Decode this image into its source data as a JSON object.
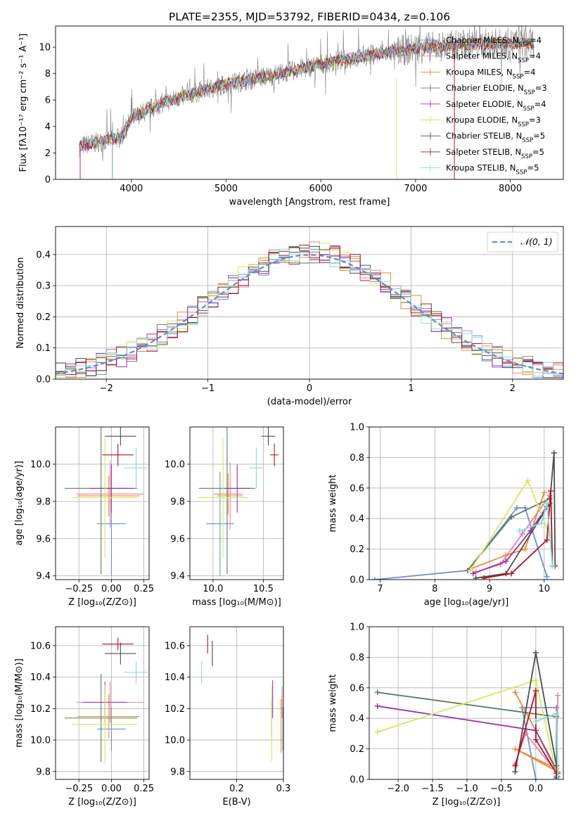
{
  "title": "PLATE=2355, MJD=53792, FIBERID=0434, z=0.106",
  "models": [
    {
      "name": "Chabrier MILES",
      "nssp": "4",
      "color": "#6b8fd9"
    },
    {
      "name": "Salpeter MILES",
      "nssp": "4",
      "color": "#e8839e"
    },
    {
      "name": "Kroupa MILES",
      "nssp": "4",
      "color": "#ee8a32"
    },
    {
      "name": "Chabrier ELODIE",
      "nssp": "3",
      "color": "#5a7f62"
    },
    {
      "name": "Salpeter ELODIE",
      "nssp": "4",
      "color": "#9f2fb0"
    },
    {
      "name": "Kroupa ELODIE",
      "nssp": "3",
      "color": "#d3ea58"
    },
    {
      "name": "Chabrier STELIB",
      "nssp": "5",
      "color": "#4d4d4d"
    },
    {
      "name": "Salpeter STELIB",
      "nssp": "5",
      "color": "#b3141f"
    },
    {
      "name": "Kroupa STELIB",
      "nssp": "5",
      "color": "#86dbe3"
    }
  ],
  "nssp_prefix": "N",
  "nssp_sub": "SSP",
  "chart_data": [
    {
      "id": "spectrum",
      "type": "line",
      "xlabel": "wavelength [Angstrom, rest frame]",
      "ylabel": "Flux [fλ10⁻¹⁷ erg cm⁻² s⁻¹ A⁻¹]",
      "xlim": [
        3200,
        8560
      ],
      "ylim": [
        0,
        11.6
      ],
      "xticks": [
        4000,
        5000,
        6000,
        7000,
        8000
      ],
      "yticks": [
        0,
        2,
        4,
        6,
        8,
        10
      ],
      "x_range": [
        3450,
        8250
      ],
      "continuum": {
        "x": [
          3450,
          3900,
          4000,
          4300,
          4600,
          5000,
          5500,
          6000,
          6500,
          7000,
          7500,
          8000,
          8250
        ],
        "y": [
          2.5,
          3.2,
          4.6,
          5.7,
          6.4,
          7.2,
          7.9,
          8.7,
          9.4,
          9.9,
          10.2,
          10.3,
          10.3
        ]
      },
      "data_color": "#808080"
    },
    {
      "id": "residuals",
      "type": "histogram",
      "xlabel": "(data-model)/error",
      "ylabel": "Normed distribution",
      "xlim": [
        -2.5,
        2.5
      ],
      "ylim": [
        0,
        0.49
      ],
      "xticks": [
        -2,
        -1,
        0,
        1,
        2
      ],
      "yticks": [
        0.0,
        0.1,
        0.2,
        0.3,
        0.4
      ],
      "bin_width": 0.1,
      "bins_start": -2.5,
      "reference": {
        "name": "𝒩(0, 1)",
        "type": "normal",
        "mean": 0,
        "sigma": 1,
        "color": "#5b8bd6"
      }
    },
    {
      "id": "age-vs-z",
      "type": "errorbar",
      "xlabel": "Z [log₁₀(Z/Z⊙)]",
      "ylabel": "age  [log₁₀(age/yr)]",
      "xlim": [
        -0.43,
        0.29
      ],
      "ylim": [
        9.38,
        10.2
      ],
      "xticks": [
        -0.25,
        0.0,
        0.25
      ],
      "yticks": [
        9.4,
        9.6,
        9.8,
        10.0
      ],
      "points": [
        {
          "x": 0.0,
          "y": 9.68,
          "xerr": 0.11,
          "yerr": 0.28
        },
        {
          "x": -0.01,
          "y": 9.84,
          "xerr": 0.26,
          "yerr": 0.18
        },
        {
          "x": -0.02,
          "y": 9.83,
          "xerr": 0.24,
          "yerr": 0.11
        },
        {
          "x": -0.08,
          "y": 9.87,
          "xerr": 0.28,
          "yerr": 0.46
        },
        {
          "x": 0.0,
          "y": 9.87,
          "xerr": 0.17,
          "yerr": 0.13
        },
        {
          "x": -0.05,
          "y": 9.82,
          "xerr": 0.25,
          "yerr": 0.32
        },
        {
          "x": 0.07,
          "y": 10.15,
          "xerr": 0.12,
          "yerr": 0.05
        },
        {
          "x": 0.05,
          "y": 10.05,
          "xerr": 0.12,
          "yerr": 0.06
        },
        {
          "x": 0.19,
          "y": 9.98,
          "xerr": 0.09,
          "yerr": 0.11
        }
      ]
    },
    {
      "id": "age-vs-mass",
      "type": "errorbar",
      "xlabel": "mass [log₁₀(M/M⊙)]",
      "ylabel": "",
      "xlim": [
        9.77,
        10.7
      ],
      "ylim": [
        9.38,
        10.2
      ],
      "xticks": [
        10.0,
        10.5
      ],
      "yticks": [
        9.4,
        9.6,
        9.8,
        10.0
      ],
      "points": [
        {
          "x": 10.07,
          "y": 9.68,
          "xerr": 0.14,
          "yerr": 0.28
        },
        {
          "x": 10.17,
          "y": 9.83,
          "xerr": 0.13,
          "yerr": 0.18
        },
        {
          "x": 10.15,
          "y": 9.84,
          "xerr": 0.14,
          "yerr": 0.11
        },
        {
          "x": 10.14,
          "y": 9.87,
          "xerr": 0.28,
          "yerr": 0.46
        },
        {
          "x": 10.24,
          "y": 9.87,
          "xerr": 0.13,
          "yerr": 0.13
        },
        {
          "x": 10.1,
          "y": 9.82,
          "xerr": 0.25,
          "yerr": 0.32
        },
        {
          "x": 10.55,
          "y": 10.15,
          "xerr": 0.07,
          "yerr": 0.05
        },
        {
          "x": 10.61,
          "y": 10.05,
          "xerr": 0.04,
          "yerr": 0.06
        },
        {
          "x": 10.43,
          "y": 9.98,
          "xerr": 0.07,
          "yerr": 0.11
        }
      ]
    },
    {
      "id": "weight-vs-age",
      "type": "line",
      "xlabel": "age  [log₁₀(age/yr)]",
      "ylabel": "mass weight",
      "xlim": [
        6.8,
        10.35
      ],
      "ylim": [
        0,
        1.0
      ],
      "xticks": [
        7,
        8,
        9,
        10
      ],
      "yticks": [
        0.0,
        0.2,
        0.4,
        0.6,
        0.8,
        1.0
      ],
      "series": [
        {
          "x": [
            6.9,
            8.6,
            9.5,
            9.65,
            10.05
          ],
          "y": [
            0.0,
            0.06,
            0.47,
            0.47,
            0.02
          ]
        },
        {
          "x": [
            8.75,
            9.2,
            9.6,
            10.1
          ],
          "y": [
            0.05,
            0.1,
            0.3,
            0.55
          ]
        },
        {
          "x": [
            8.65,
            9.3,
            9.65,
            10.0
          ],
          "y": [
            0.07,
            0.16,
            0.2,
            0.57
          ]
        },
        {
          "x": [
            8.6,
            9.4,
            10.1
          ],
          "y": [
            0.06,
            0.41,
            0.53
          ]
        },
        {
          "x": [
            8.7,
            9.3,
            9.75,
            10.05
          ],
          "y": [
            0.04,
            0.12,
            0.32,
            0.48
          ]
        },
        {
          "x": [
            8.65,
            9.7,
            10.1
          ],
          "y": [
            0.06,
            0.65,
            0.29
          ]
        },
        {
          "x": [
            8.75,
            9.3,
            10.1,
            10.18,
            10.2
          ],
          "y": [
            0.01,
            0.04,
            0.5,
            0.83,
            0.09
          ]
        },
        {
          "x": [
            8.9,
            9.4,
            10.05,
            10.12,
            10.15
          ],
          "y": [
            0.01,
            0.04,
            0.26,
            0.58,
            0.09
          ]
        },
        {
          "x": [
            9.55,
            9.95,
            10.05,
            10.15
          ],
          "y": [
            0.32,
            0.37,
            0.5,
            0.09
          ]
        }
      ]
    },
    {
      "id": "mass-vs-z",
      "type": "errorbar",
      "xlabel": "Z [log₁₀(Z/Z⊙)]",
      "ylabel": "mass [log₁₀(M/M⊙)]",
      "xlim": [
        -0.43,
        0.29
      ],
      "ylim": [
        9.75,
        10.72
      ],
      "xticks": [
        -0.25,
        0.0,
        0.25
      ],
      "yticks": [
        9.8,
        10.0,
        10.2,
        10.4,
        10.6
      ],
      "points": [
        {
          "x": 0.0,
          "y": 10.07,
          "xerr": 0.11,
          "yerr": 0.14
        },
        {
          "x": -0.01,
          "y": 10.24,
          "xerr": 0.26,
          "yerr": 0.13
        },
        {
          "x": -0.02,
          "y": 10.15,
          "xerr": 0.24,
          "yerr": 0.14
        },
        {
          "x": -0.08,
          "y": 10.14,
          "xerr": 0.28,
          "yerr": 0.28
        },
        {
          "x": -0.05,
          "y": 10.24,
          "xerr": 0.17,
          "yerr": 0.13
        },
        {
          "x": -0.05,
          "y": 10.1,
          "xerr": 0.25,
          "yerr": 0.25
        },
        {
          "x": 0.07,
          "y": 10.55,
          "xerr": 0.12,
          "yerr": 0.07
        },
        {
          "x": 0.05,
          "y": 10.61,
          "xerr": 0.12,
          "yerr": 0.04
        },
        {
          "x": 0.19,
          "y": 10.43,
          "xerr": 0.09,
          "yerr": 0.07
        }
      ]
    },
    {
      "id": "mass-vs-ebv",
      "type": "errorbar",
      "xlabel": "E(B-V)",
      "ylabel": "",
      "xlim": [
        0.1,
        0.3
      ],
      "ylim": [
        9.75,
        10.72
      ],
      "xticks": [
        0.2,
        0.3
      ],
      "yticks": [
        9.8,
        10.0,
        10.2,
        10.4,
        10.6
      ],
      "points": [
        {
          "x": 0.299,
          "y": 10.07,
          "xerr": 0.0,
          "yerr": 0.14
        },
        {
          "x": 0.297,
          "y": 10.24,
          "xerr": 0.0,
          "yerr": 0.1
        },
        {
          "x": 0.295,
          "y": 10.09,
          "xerr": 0.0,
          "yerr": 0.17
        },
        {
          "x": 0.275,
          "y": 10.14,
          "xerr": 0.0,
          "yerr": 0.12
        },
        {
          "x": 0.277,
          "y": 10.26,
          "xerr": 0.0,
          "yerr": 0.12
        },
        {
          "x": 0.275,
          "y": 10.1,
          "xerr": 0.0,
          "yerr": 0.24
        },
        {
          "x": 0.148,
          "y": 10.55,
          "xerr": 0.0,
          "yerr": 0.08
        },
        {
          "x": 0.138,
          "y": 10.61,
          "xerr": 0.0,
          "yerr": 0.06
        },
        {
          "x": 0.125,
          "y": 10.43,
          "xerr": 0.0,
          "yerr": 0.07
        }
      ]
    },
    {
      "id": "weight-vs-z",
      "type": "line",
      "xlabel": "Z [log₁₀(Z/Z⊙)]",
      "ylabel": "mass weight",
      "xlim": [
        -2.42,
        0.4
      ],
      "ylim": [
        0,
        1.0
      ],
      "xticks": [
        -2.0,
        -1.5,
        -1.0,
        -0.5,
        0.0
      ],
      "yticks": [
        0.0,
        0.2,
        0.4,
        0.6,
        0.8,
        1.0
      ],
      "series": [
        {
          "x": [
            0.0,
            -0.2,
            0.3,
            0.32
          ],
          "y": [
            0.0,
            0.47,
            0.47,
            0.02
          ]
        },
        {
          "x": [
            -0.3,
            -0.15,
            0.3,
            0.32
          ],
          "y": [
            0.1,
            0.3,
            0.05,
            0.55
          ]
        },
        {
          "x": [
            -0.3,
            0.3,
            -0.3,
            0.32
          ],
          "y": [
            0.57,
            0.07,
            0.2,
            0.05
          ]
        },
        {
          "x": [
            -2.3,
            0.3,
            0.3
          ],
          "y": [
            0.57,
            0.41,
            0.02
          ]
        },
        {
          "x": [
            -2.3,
            0.0,
            0.32
          ],
          "y": [
            0.48,
            0.32,
            0.04
          ]
        },
        {
          "x": [
            -2.3,
            0.0,
            0.3
          ],
          "y": [
            0.31,
            0.65,
            0.04
          ]
        },
        {
          "x": [
            -0.3,
            0.0,
            0.3,
            0.3
          ],
          "y": [
            0.05,
            0.83,
            0.09,
            0.01
          ]
        },
        {
          "x": [
            -0.3,
            0.0,
            0.0,
            0.3
          ],
          "y": [
            0.09,
            0.58,
            0.26,
            0.04
          ]
        },
        {
          "x": [
            0.0,
            0.3,
            0.32
          ],
          "y": [
            0.38,
            0.43,
            0.0
          ]
        }
      ]
    }
  ]
}
